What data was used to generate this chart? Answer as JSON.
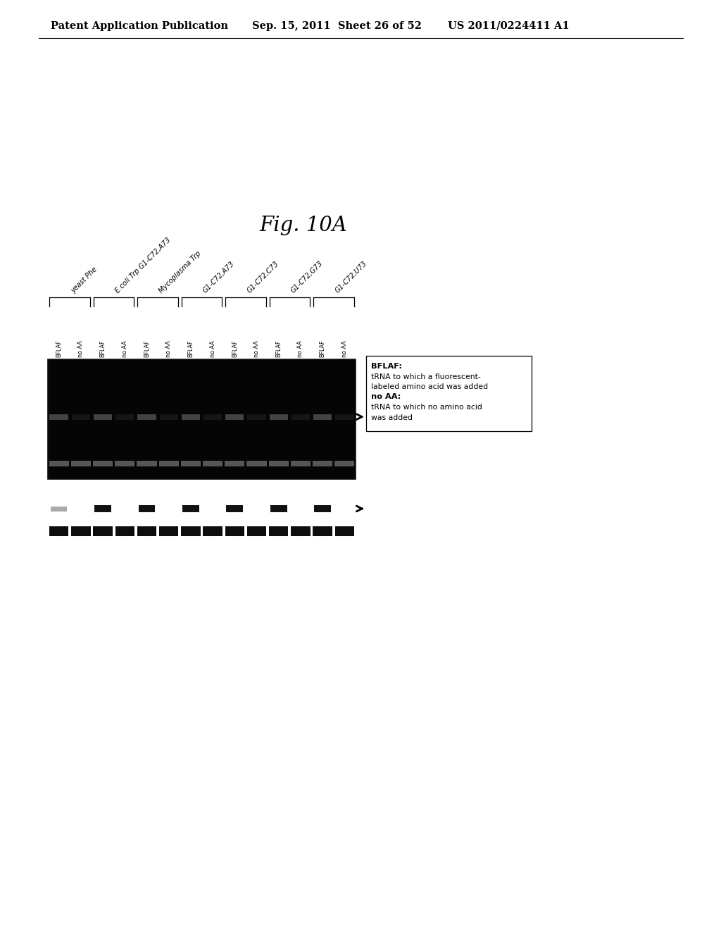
{
  "header_left": "Patent Application Publication",
  "header_mid": "Sep. 15, 2011  Sheet 26 of 52",
  "header_right": "US 2011/0224411 A1",
  "figure_label": "Fig. 10A",
  "column_groups": [
    "yeast Phe",
    "E.coli Trp G1-C72,A73",
    "Mycoplasma Trp",
    "G1-C72,A73",
    "G1-C72,C73",
    "G1-C72,G73",
    "G1-C72,U73"
  ],
  "lane_labels": [
    "BFLAF",
    "no AA"
  ],
  "legend_title": "BFLAF:",
  "legend_line1": "tRNA to which a fluorescent-",
  "legend_line2": "labeled amino acid was added",
  "legend_line3": "no AA:",
  "legend_line4": "tRNA to which no amino acid",
  "legend_line5": "was added",
  "num_groups": 7,
  "bg_color": "#ffffff",
  "gel_bg": "#000000",
  "arrow_color": "#000000"
}
